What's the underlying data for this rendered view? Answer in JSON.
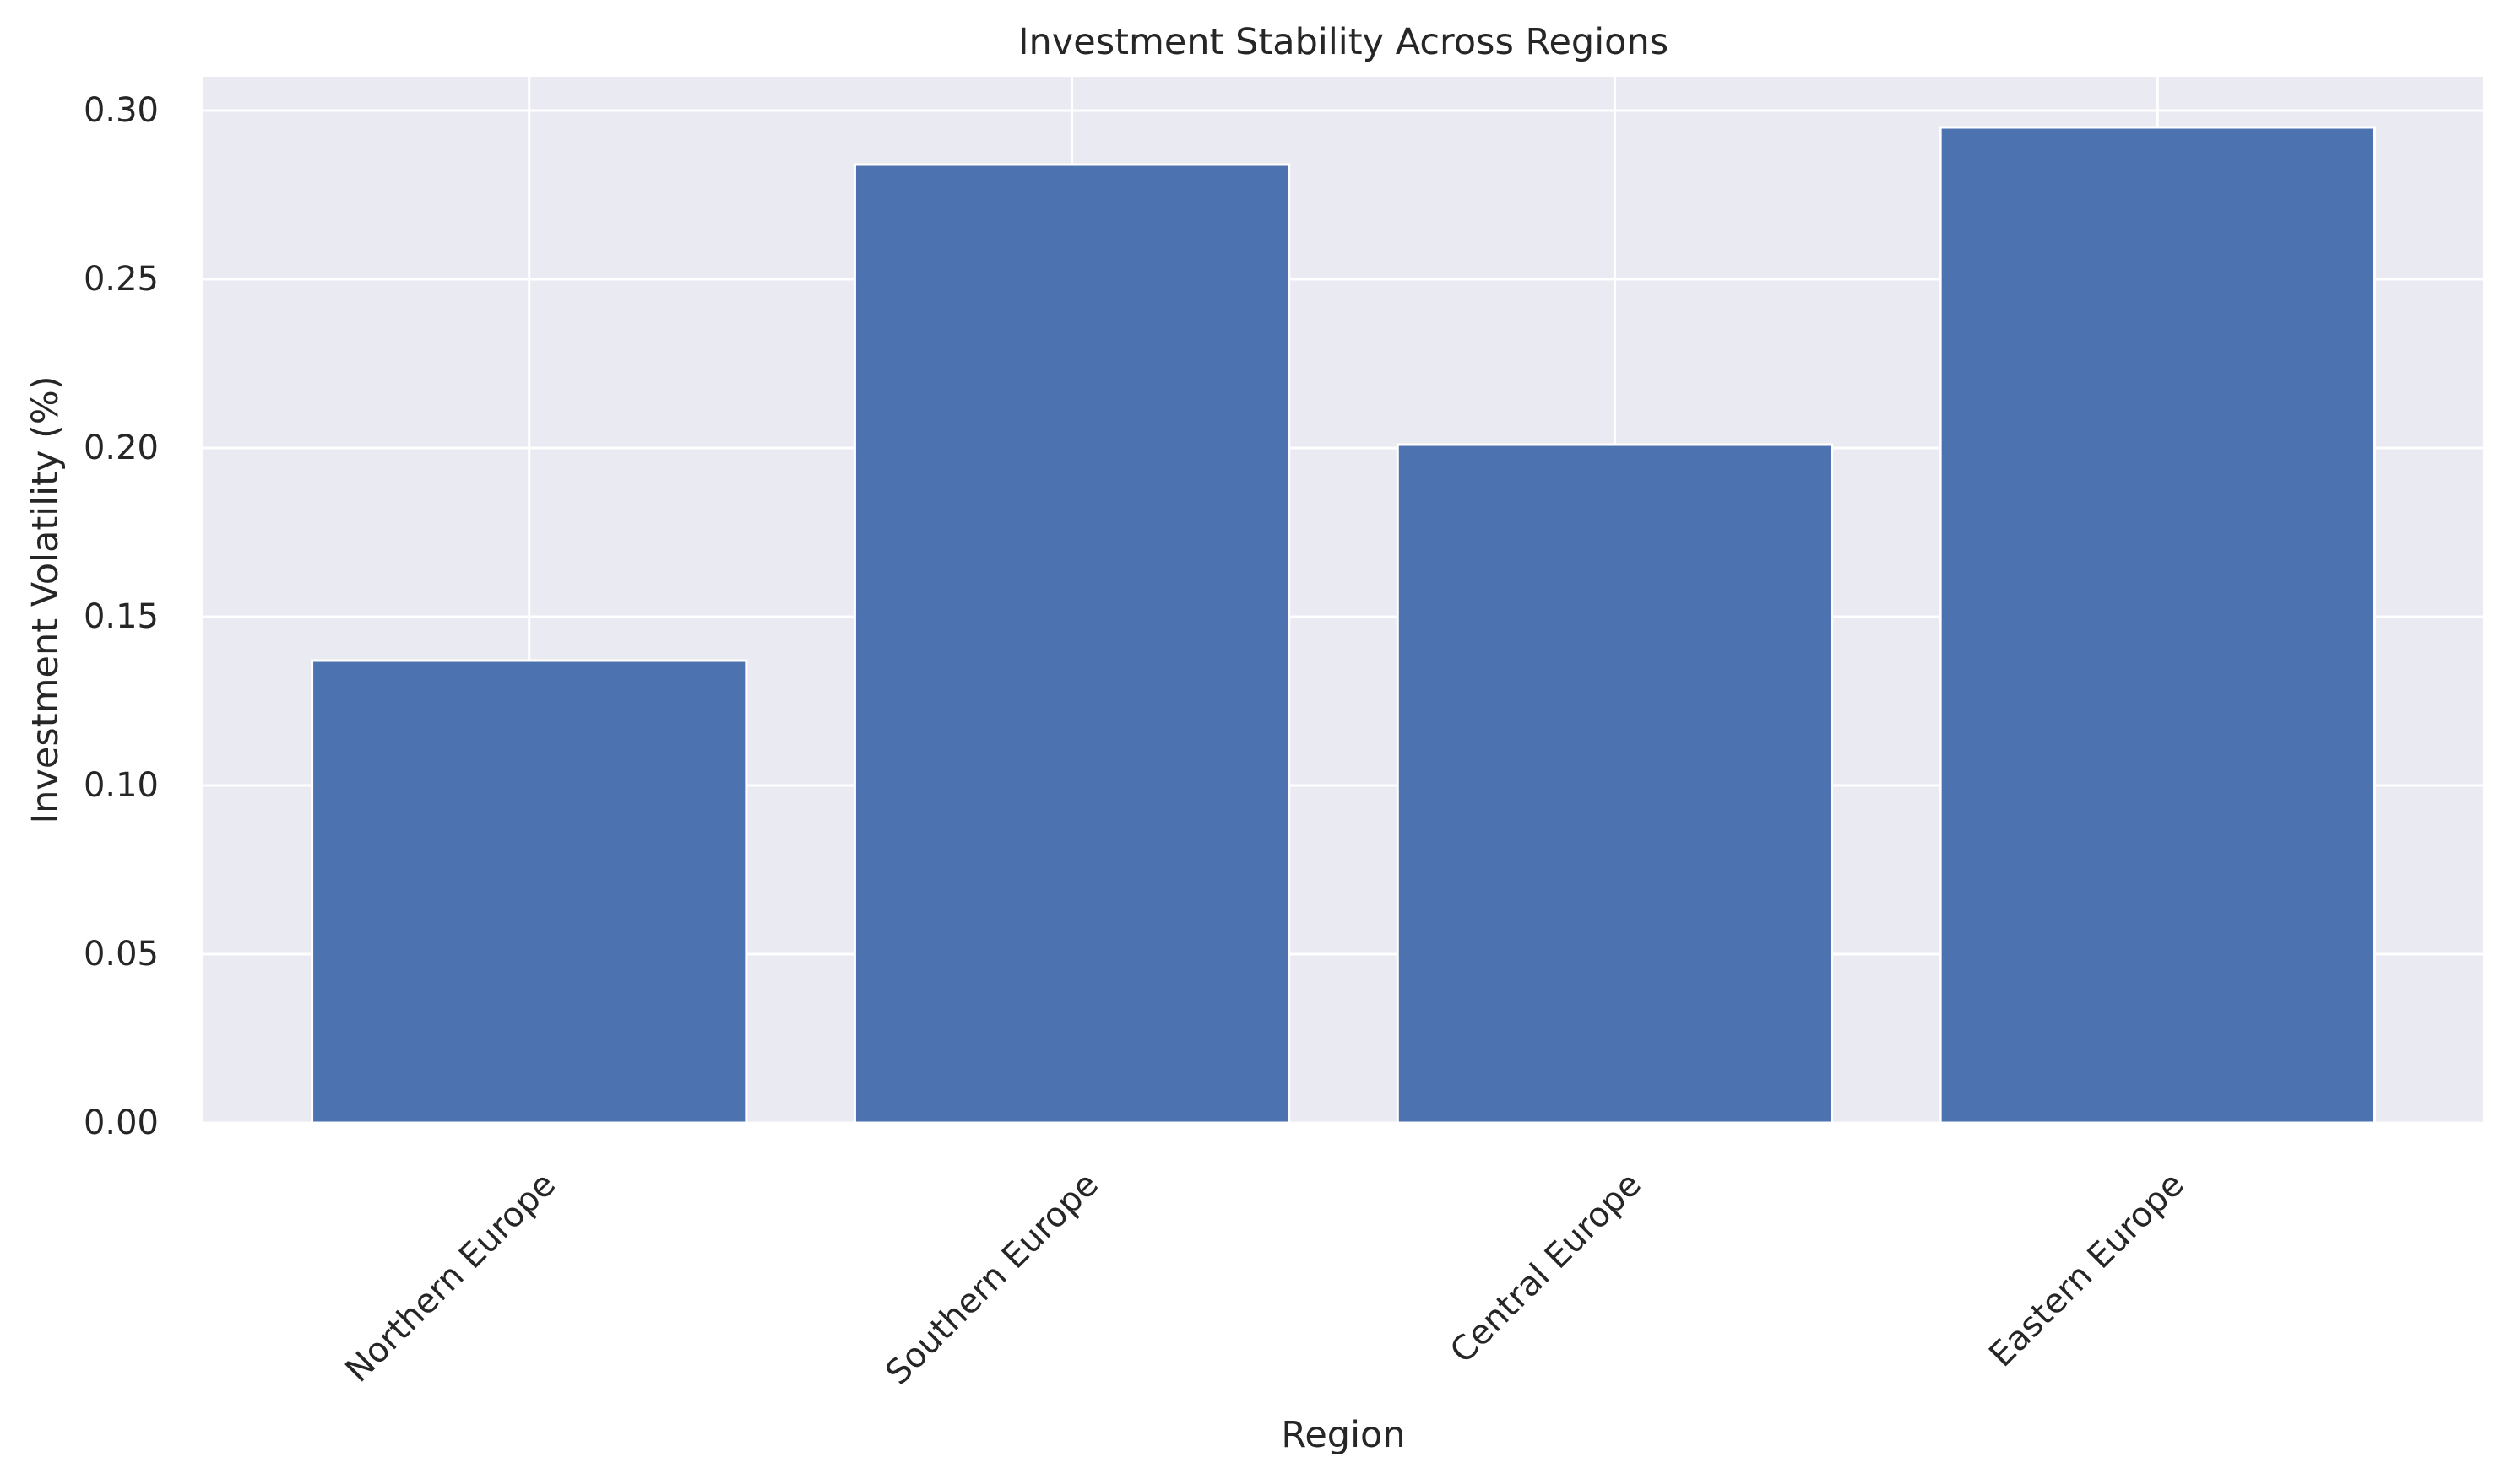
{
  "chart_data": {
    "type": "bar",
    "title": "Investment Stability Across Regions",
    "xlabel": "Region",
    "ylabel": "Investment Volatility (%)",
    "categories": [
      "Northern Europe",
      "Southern Europe",
      "Central Europe",
      "Eastern Europe"
    ],
    "values": [
      0.137,
      0.284,
      0.201,
      0.295
    ],
    "ylim": [
      0,
      0.31
    ],
    "yticks": [
      0.0,
      0.05,
      0.1,
      0.15,
      0.2,
      0.25,
      0.3
    ],
    "ytick_labels": [
      "0.00",
      "0.05",
      "0.10",
      "0.15",
      "0.20",
      "0.25",
      "0.30"
    ],
    "grid": true,
    "legend": "none",
    "colors": {
      "bar": "#4c72b0",
      "plot_background": "#eaeaf2",
      "grid": "#ffffff",
      "text": "#262626"
    }
  }
}
